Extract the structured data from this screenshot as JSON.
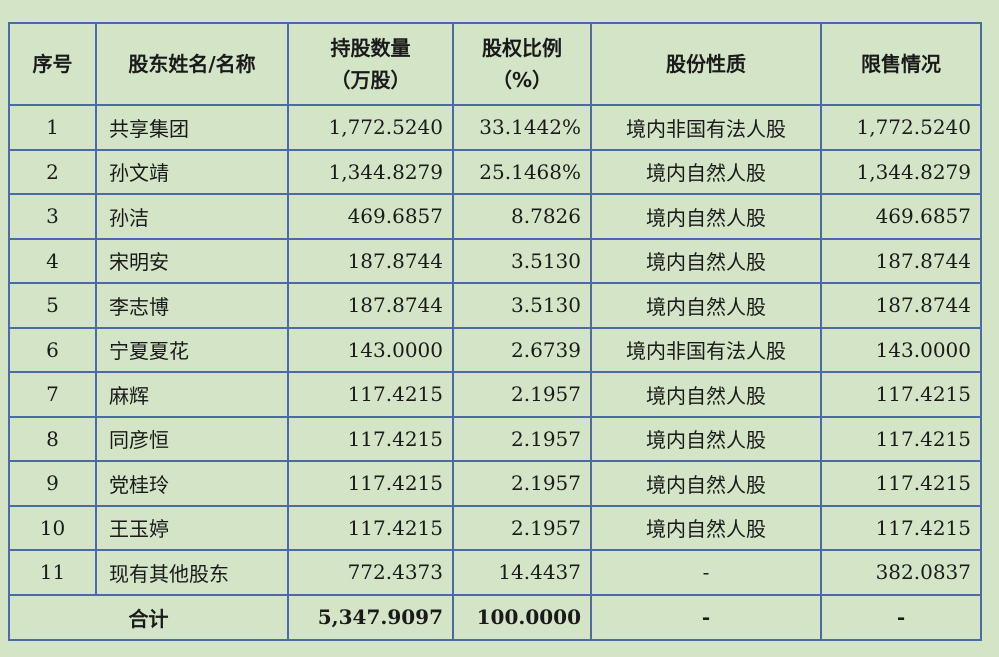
{
  "table": {
    "headers": {
      "seq": "序号",
      "name": "股东姓名/名称",
      "shares_line1": "持股数量",
      "shares_line2": "（万股）",
      "ratio_line1": "股权比例",
      "ratio_line2": "（%）",
      "nature": "股份性质",
      "restricted": "限售情况"
    },
    "rows": [
      {
        "seq": "1",
        "name": "共享集团",
        "shares": "1,772.5240",
        "ratio": "33.1442%",
        "nature": "境内非国有法人股",
        "restricted": "1,772.5240"
      },
      {
        "seq": "2",
        "name": "孙文靖",
        "shares": "1,344.8279",
        "ratio": "25.1468%",
        "nature": "境内自然人股",
        "restricted": "1,344.8279"
      },
      {
        "seq": "3",
        "name": "孙洁",
        "shares": "469.6857",
        "ratio": "8.7826",
        "nature": "境内自然人股",
        "restricted": "469.6857"
      },
      {
        "seq": "4",
        "name": "宋明安",
        "shares": "187.8744",
        "ratio": "3.5130",
        "nature": "境内自然人股",
        "restricted": "187.8744"
      },
      {
        "seq": "5",
        "name": "李志博",
        "shares": "187.8744",
        "ratio": "3.5130",
        "nature": "境内自然人股",
        "restricted": "187.8744"
      },
      {
        "seq": "6",
        "name": "宁夏夏花",
        "shares": "143.0000",
        "ratio": "2.6739",
        "nature": "境内非国有法人股",
        "restricted": "143.0000"
      },
      {
        "seq": "7",
        "name": "麻辉",
        "shares": "117.4215",
        "ratio": "2.1957",
        "nature": "境内自然人股",
        "restricted": "117.4215"
      },
      {
        "seq": "8",
        "name": "同彦恒",
        "shares": "117.4215",
        "ratio": "2.1957",
        "nature": "境内自然人股",
        "restricted": "117.4215"
      },
      {
        "seq": "9",
        "name": "党桂玲",
        "shares": "117.4215",
        "ratio": "2.1957",
        "nature": "境内自然人股",
        "restricted": "117.4215"
      },
      {
        "seq": "10",
        "name": "王玉婷",
        "shares": "117.4215",
        "ratio": "2.1957",
        "nature": "境内自然人股",
        "restricted": "117.4215"
      },
      {
        "seq": "11",
        "name": "现有其他股东",
        "shares": "772.4373",
        "ratio": "14.4437",
        "nature": "-",
        "restricted": "382.0837"
      }
    ],
    "total": {
      "label": "合计",
      "shares": "5,347.9097",
      "ratio": "100.0000",
      "nature": "-",
      "restricted": "-"
    }
  }
}
